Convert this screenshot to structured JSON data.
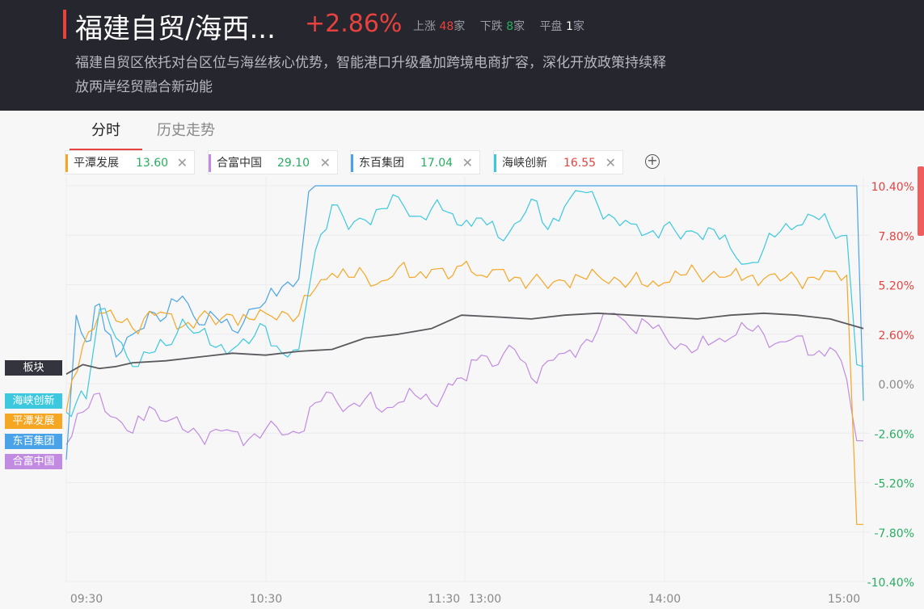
{
  "header": {
    "title": "福建自贸/海西...",
    "change": "+2.86%",
    "stats": [
      {
        "label": "上涨",
        "count": "48",
        "unit": "家"
      },
      {
        "label": "下跌",
        "count": "8",
        "unit": "家"
      },
      {
        "label": "平盘",
        "count": "1",
        "unit": "家"
      }
    ],
    "description_line1": "福建自贸区依托对台区位与海丝核心优势，智能港口升级叠加跨境电商扩容，深化开放政策持续释",
    "description_line2": "放两岸经贸融合新动能"
  },
  "tabs": [
    {
      "label": "分时",
      "active": true
    },
    {
      "label": "历史走势",
      "active": false
    }
  ],
  "chips": [
    {
      "name": "平潭发展",
      "value": "13.60",
      "value_color": "#27ae60",
      "color": "#f5a623"
    },
    {
      "name": "合富中国",
      "value": "29.10",
      "value_color": "#27ae60",
      "color": "#c08be0"
    },
    {
      "name": "东百集团",
      "value": "17.04",
      "value_color": "#27ae60",
      "color": "#4aa3e8"
    },
    {
      "name": "海峡创新",
      "value": "16.55",
      "value_color": "#e8423f",
      "color": "#3cc8de"
    }
  ],
  "legend_tags": [
    {
      "label": "板块",
      "color": "#33343d"
    },
    {
      "label": "海峡创新",
      "color": "#3cc8de"
    },
    {
      "label": "平潭发展",
      "color": "#f5a623"
    },
    {
      "label": "东百集团",
      "color": "#4aa3e8"
    },
    {
      "label": "合富中国",
      "color": "#c08be0"
    }
  ],
  "colors": {
    "up": "#e8423f",
    "down": "#27ae60"
  },
  "chart_data": {
    "type": "line",
    "x_ticks": [
      "09:30",
      "10:30",
      "11:30",
      "13:00",
      "14:00",
      "15:00"
    ],
    "y_ticks": [
      "10.40%",
      "7.80%",
      "5.20%",
      "2.60%",
      "0.00%",
      "-2.60%",
      "-5.20%",
      "-7.80%",
      "-10.40%"
    ],
    "ylim": [
      -10.4,
      10.4
    ],
    "series": [
      {
        "name": "板块",
        "color": "#5a5a5e",
        "x": [
          0,
          5,
          10,
          15,
          20,
          30,
          40,
          50,
          60,
          70,
          80,
          90,
          100,
          110,
          119,
          130,
          140,
          150,
          160,
          170,
          180,
          190,
          200,
          210,
          220,
          230,
          240
        ],
        "values": [
          0.5,
          1.0,
          0.8,
          0.9,
          1.1,
          1.2,
          1.4,
          1.6,
          1.5,
          1.7,
          1.8,
          2.4,
          2.6,
          2.9,
          3.6,
          3.5,
          3.4,
          3.6,
          3.7,
          3.6,
          3.5,
          3.4,
          3.6,
          3.7,
          3.6,
          3.4,
          2.9
        ]
      },
      {
        "name": "海峡创新",
        "color": "#3cc8de",
        "x": [
          0,
          3,
          6,
          10,
          15,
          20,
          25,
          30,
          35,
          40,
          45,
          50,
          55,
          60,
          65,
          70,
          75,
          80,
          85,
          90,
          95,
          100,
          105,
          110,
          115,
          119,
          125,
          130,
          135,
          140,
          145,
          150,
          155,
          160,
          165,
          170,
          175,
          180,
          185,
          190,
          195,
          200,
          205,
          210,
          215,
          220,
          225,
          230,
          235,
          238,
          240
        ],
        "values": [
          -1.5,
          -1.0,
          -0.8,
          3.9,
          2.4,
          0.9,
          1.6,
          2.0,
          3.4,
          2.7,
          1.9,
          1.8,
          2.1,
          3.0,
          1.6,
          1.8,
          7.0,
          9.4,
          8.1,
          8.6,
          9.2,
          9.8,
          8.8,
          9.2,
          9.0,
          8.3,
          8.7,
          7.7,
          8.4,
          9.7,
          8.1,
          9.3,
          10.1,
          9.4,
          8.7,
          8.4,
          7.9,
          8.3,
          7.6,
          7.9,
          8.1,
          7.1,
          6.3,
          7.1,
          8.0,
          8.3,
          8.8,
          8.2,
          7.8,
          1.0,
          0.9
        ]
      },
      {
        "name": "平潭发展",
        "color": "#f5a623",
        "x": [
          0,
          5,
          10,
          15,
          20,
          25,
          30,
          35,
          40,
          45,
          50,
          55,
          60,
          65,
          70,
          75,
          80,
          85,
          90,
          95,
          100,
          105,
          110,
          115,
          119,
          125,
          130,
          135,
          140,
          145,
          150,
          155,
          160,
          165,
          170,
          175,
          180,
          185,
          190,
          195,
          200,
          205,
          210,
          215,
          220,
          225,
          230,
          235,
          238,
          240
        ],
        "values": [
          -1.5,
          2.0,
          3.7,
          3.3,
          2.9,
          3.8,
          3.7,
          3.0,
          3.5,
          3.1,
          3.6,
          3.4,
          3.7,
          3.8,
          3.6,
          5.0,
          5.8,
          5.6,
          5.7,
          5.4,
          6.1,
          5.6,
          6.0,
          5.5,
          6.2,
          5.7,
          6.0,
          5.6,
          5.4,
          5.0,
          5.4,
          5.6,
          5.7,
          5.6,
          5.4,
          5.1,
          5.3,
          5.7,
          5.8,
          5.9,
          5.7,
          5.6,
          5.5,
          5.4,
          5.5,
          5.6,
          5.9,
          5.7,
          -7.4,
          -7.4
        ]
      },
      {
        "name": "东百集团",
        "color": "#4aa3e8",
        "x": [
          0,
          3,
          6,
          10,
          15,
          20,
          25,
          30,
          35,
          40,
          45,
          50,
          55,
          60,
          65,
          70,
          73,
          75,
          100,
          130,
          160,
          190,
          220,
          235,
          238,
          240
        ],
        "values": [
          -4.0,
          3.6,
          2.2,
          4.2,
          1.4,
          2.6,
          3.8,
          3.5,
          4.6,
          3.1,
          3.5,
          2.8,
          3.9,
          4.3,
          5.1,
          5.5,
          10.1,
          10.4,
          10.4,
          10.4,
          10.4,
          10.4,
          10.4,
          10.4,
          10.4,
          -0.9
        ]
      },
      {
        "name": "合富中国",
        "color": "#c08be0",
        "x": [
          0,
          5,
          10,
          15,
          20,
          25,
          30,
          35,
          40,
          45,
          50,
          55,
          60,
          65,
          70,
          75,
          80,
          85,
          90,
          95,
          100,
          105,
          110,
          115,
          119,
          125,
          130,
          135,
          140,
          145,
          150,
          155,
          160,
          165,
          170,
          175,
          180,
          185,
          190,
          195,
          200,
          205,
          210,
          215,
          220,
          225,
          230,
          235,
          238,
          240
        ],
        "values": [
          -3.2,
          -1.5,
          -0.5,
          -1.8,
          -2.6,
          -1.2,
          -2.0,
          -2.4,
          -2.7,
          -2.4,
          -2.5,
          -2.9,
          -2.4,
          -2.7,
          -2.6,
          -1.0,
          -0.5,
          -1.2,
          -0.8,
          -1.5,
          -1.0,
          -0.6,
          -1.0,
          0.0,
          0.3,
          1.5,
          1.0,
          1.8,
          0.3,
          1.2,
          1.6,
          2.0,
          2.8,
          3.7,
          2.9,
          3.2,
          2.6,
          2.1,
          1.8,
          2.2,
          2.4,
          2.9,
          2.6,
          2.2,
          2.5,
          1.5,
          1.9,
          0.2,
          -3.0,
          -3.0
        ]
      }
    ]
  }
}
